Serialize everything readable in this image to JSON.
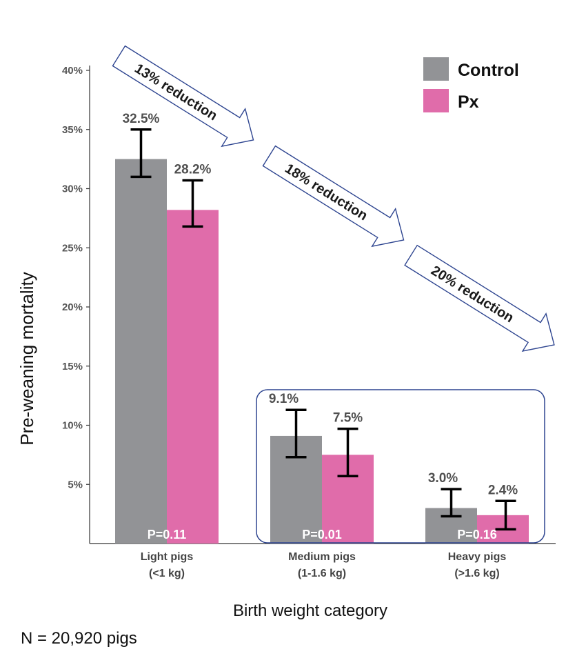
{
  "chart_data": {
    "type": "bar",
    "categories": [
      [
        "Light pigs",
        "(<1 kg)"
      ],
      [
        "Medium pigs",
        "(1-1.6 kg)"
      ],
      [
        "Heavy pigs",
        "(>1.6 kg)"
      ]
    ],
    "series": [
      {
        "name": "Control",
        "color": "#929396",
        "values": [
          32.5,
          9.1,
          3.0
        ],
        "labels": [
          "32.5%",
          "9.1%",
          "3.0%"
        ],
        "err_low": [
          31.0,
          7.3,
          2.3
        ],
        "err_high": [
          35.0,
          11.3,
          4.6
        ]
      },
      {
        "name": "Px",
        "color": "#e06caa",
        "values": [
          28.2,
          7.5,
          2.4
        ],
        "labels": [
          "28.2%",
          "7.5%",
          "2.4%"
        ],
        "err_low": [
          26.8,
          5.7,
          1.2
        ],
        "err_high": [
          30.7,
          9.7,
          3.6
        ]
      }
    ],
    "p_values": [
      "P=0.11",
      "P=0.01",
      "P=0.16"
    ],
    "reductions": [
      "13% reduction",
      "18% reduction",
      "20% reduction"
    ],
    "ylabel": "Pre-weaning mortality",
    "xlabel": "Birth weight category",
    "yticks": [
      "5%",
      "10%",
      "15%",
      "20%",
      "25%",
      "30%",
      "35%",
      "40%"
    ],
    "ytick_values": [
      5,
      10,
      15,
      20,
      25,
      30,
      35,
      40
    ],
    "ylim": [
      0,
      40
    ],
    "grid": false,
    "legend_position": "top-right",
    "box_color": "#2e4590"
  },
  "footnote": "N = 20,920 pigs"
}
